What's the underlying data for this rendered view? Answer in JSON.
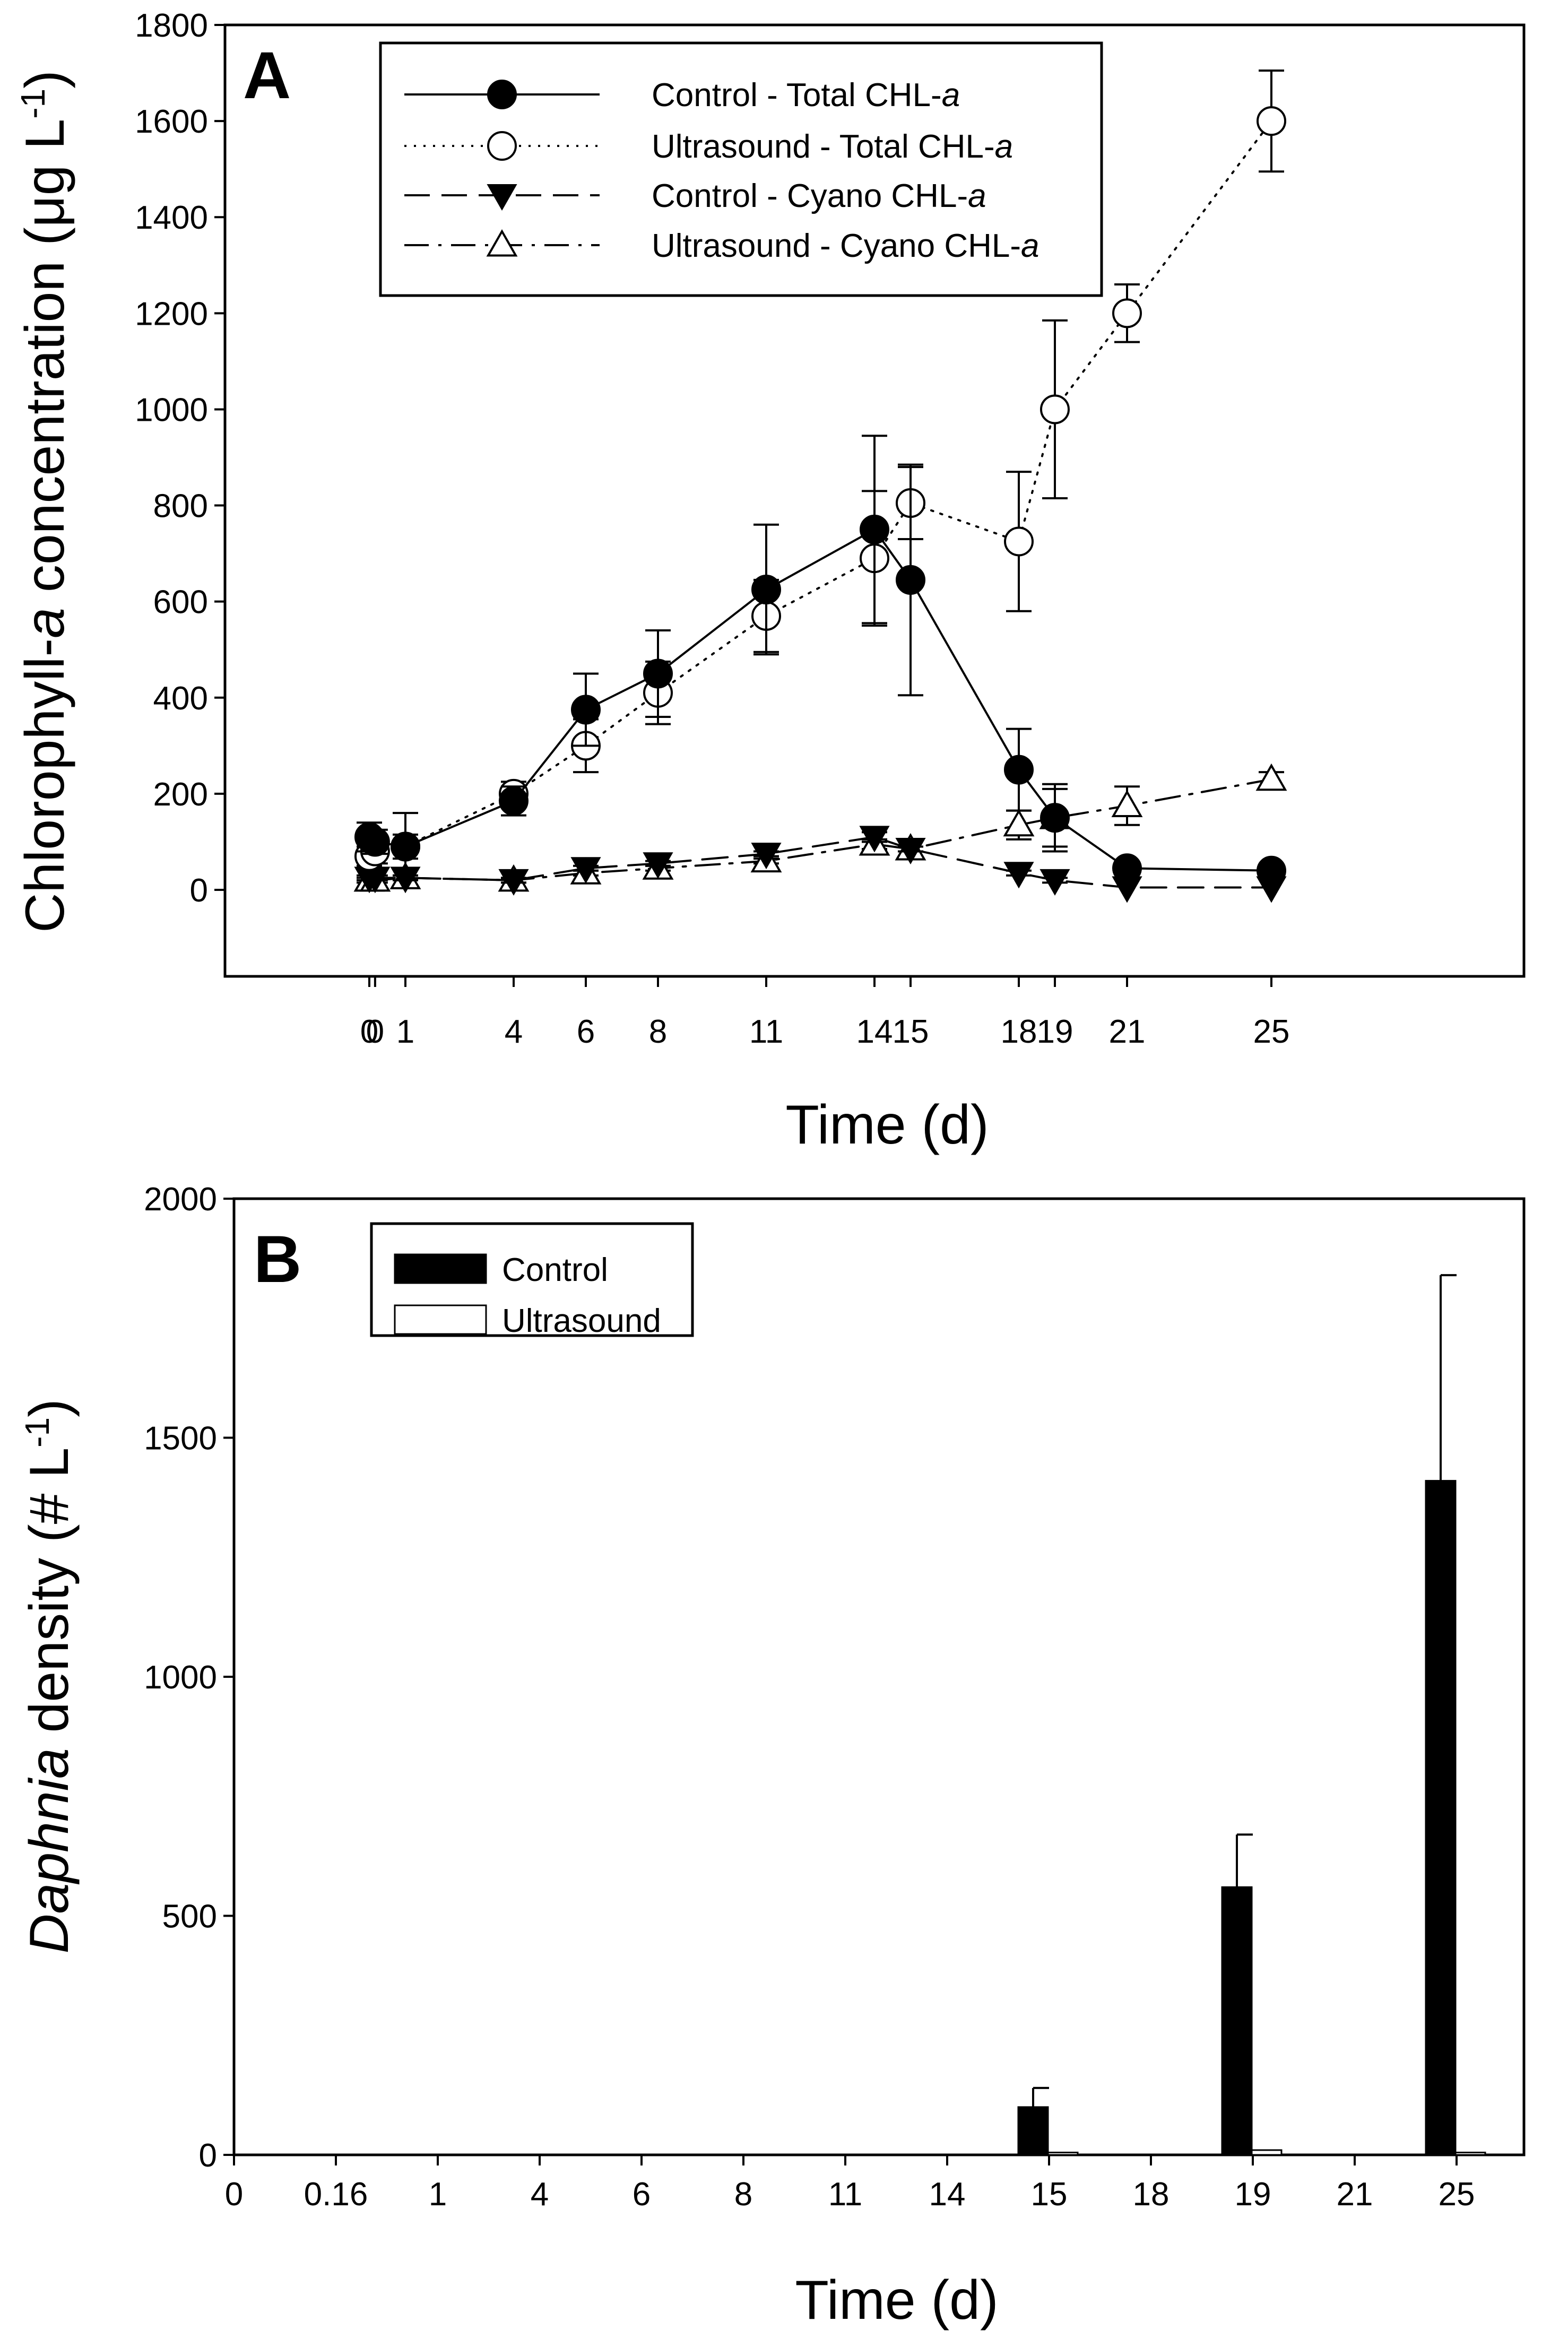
{
  "chart_data": [
    {
      "type": "line",
      "panel_label": "A",
      "xlabel": "Time (d)",
      "ylabel": {
        "pre": "Chlorophyll-",
        "italic": "a",
        "post": " concentration (μg L",
        "sup": "-1",
        "close": ")"
      },
      "ylim": [
        -180,
        1800
      ],
      "yticks": [
        0,
        200,
        400,
        600,
        800,
        1000,
        1200,
        1400,
        1600,
        1800
      ],
      "xlim": [
        -4,
        32
      ],
      "xticks": [
        {
          "v": 0,
          "label": "0"
        },
        {
          "v": 0.16,
          "label": "0"
        },
        {
          "v": 1,
          "label": "1"
        },
        {
          "v": 4,
          "label": "4"
        },
        {
          "v": 6,
          "label": "6"
        },
        {
          "v": 8,
          "label": "8"
        },
        {
          "v": 11,
          "label": "11"
        },
        {
          "v": 14,
          "label": "14"
        },
        {
          "v": 15,
          "label": "15"
        },
        {
          "v": 18,
          "label": "18"
        },
        {
          "v": 19,
          "label": "19"
        },
        {
          "v": 21,
          "label": "21"
        },
        {
          "v": 25,
          "label": "25"
        }
      ],
      "legend_position": "top-left",
      "series": [
        {
          "name": "Control - Total CHL-",
          "italic": "a",
          "marker": "filled-circle",
          "line": "solid",
          "x": [
            0,
            0.16,
            1,
            4,
            6,
            8,
            11,
            14,
            15,
            18,
            19,
            21,
            25
          ],
          "y": [
            110,
            100,
            90,
            185,
            375,
            450,
            625,
            750,
            645,
            250,
            150,
            45,
            40
          ],
          "err": [
            30,
            25,
            25,
            30,
            75,
            90,
            135,
            195,
            240,
            85,
            70,
            0,
            0
          ]
        },
        {
          "name": "Ultrasound - Total CHL-",
          "italic": "a",
          "marker": "open-circle",
          "line": "dotted",
          "x": [
            0,
            0.16,
            1,
            4,
            6,
            8,
            11,
            14,
            15,
            18,
            19,
            21,
            25
          ],
          "y": [
            70,
            80,
            90,
            200,
            300,
            410,
            570,
            690,
            805,
            725,
            1000,
            1200,
            1600
          ],
          "err": [
            20,
            25,
            70,
            25,
            55,
            65,
            75,
            140,
            75,
            145,
            185,
            60,
            105
          ]
        },
        {
          "name": "Control - Cyano CHL-",
          "italic": "a",
          "marker": "filled-triangle-down",
          "line": "dashed",
          "x": [
            0,
            0.16,
            1,
            4,
            6,
            8,
            11,
            14,
            15,
            18,
            19,
            21,
            25
          ],
          "y": [
            25,
            25,
            25,
            20,
            45,
            55,
            75,
            110,
            85,
            35,
            20,
            5,
            5
          ],
          "err": [
            5,
            5,
            5,
            5,
            5,
            5,
            5,
            10,
            5,
            5,
            5,
            0,
            0
          ]
        },
        {
          "name": "Ultrasound - Cyano CHL-",
          "italic": "a",
          "marker": "open-triangle-up",
          "line": "dashdot",
          "x": [
            0,
            0.16,
            1,
            4,
            6,
            8,
            11,
            14,
            15,
            18,
            19,
            21,
            25
          ],
          "y": [
            20,
            20,
            25,
            20,
            35,
            45,
            60,
            95,
            85,
            135,
            150,
            175,
            230
          ],
          "err": [
            5,
            5,
            5,
            5,
            5,
            5,
            5,
            10,
            5,
            30,
            60,
            40,
            15
          ]
        }
      ]
    },
    {
      "type": "bar",
      "panel_label": "B",
      "xlabel": "Time (d)",
      "ylabel": {
        "italic": "Daphnia",
        "post": " density (# L",
        "sup": "-1",
        "close": ")"
      },
      "ylim": [
        0,
        2000
      ],
      "yticks": [
        0,
        500,
        1000,
        1500,
        2000
      ],
      "categories": [
        "0",
        "0.16",
        "1",
        "4",
        "6",
        "8",
        "11",
        "14",
        "15",
        "18",
        "19",
        "21",
        "25"
      ],
      "legend_position": "top-left",
      "series": [
        {
          "name": "Control",
          "fill": "#000000",
          "values": [
            0,
            0,
            0,
            0,
            0,
            0,
            0,
            0,
            100,
            0,
            560,
            0,
            1410
          ],
          "err": [
            0,
            0,
            0,
            0,
            0,
            0,
            0,
            0,
            40,
            0,
            110,
            0,
            430
          ]
        },
        {
          "name": "Ultrasound",
          "fill": "#ffffff",
          "values": [
            0,
            0,
            0,
            0,
            0,
            0,
            0,
            0,
            5,
            0,
            10,
            0,
            5
          ],
          "err": [
            0,
            0,
            0,
            0,
            0,
            0,
            0,
            0,
            0,
            0,
            0,
            0,
            0
          ]
        }
      ]
    }
  ]
}
